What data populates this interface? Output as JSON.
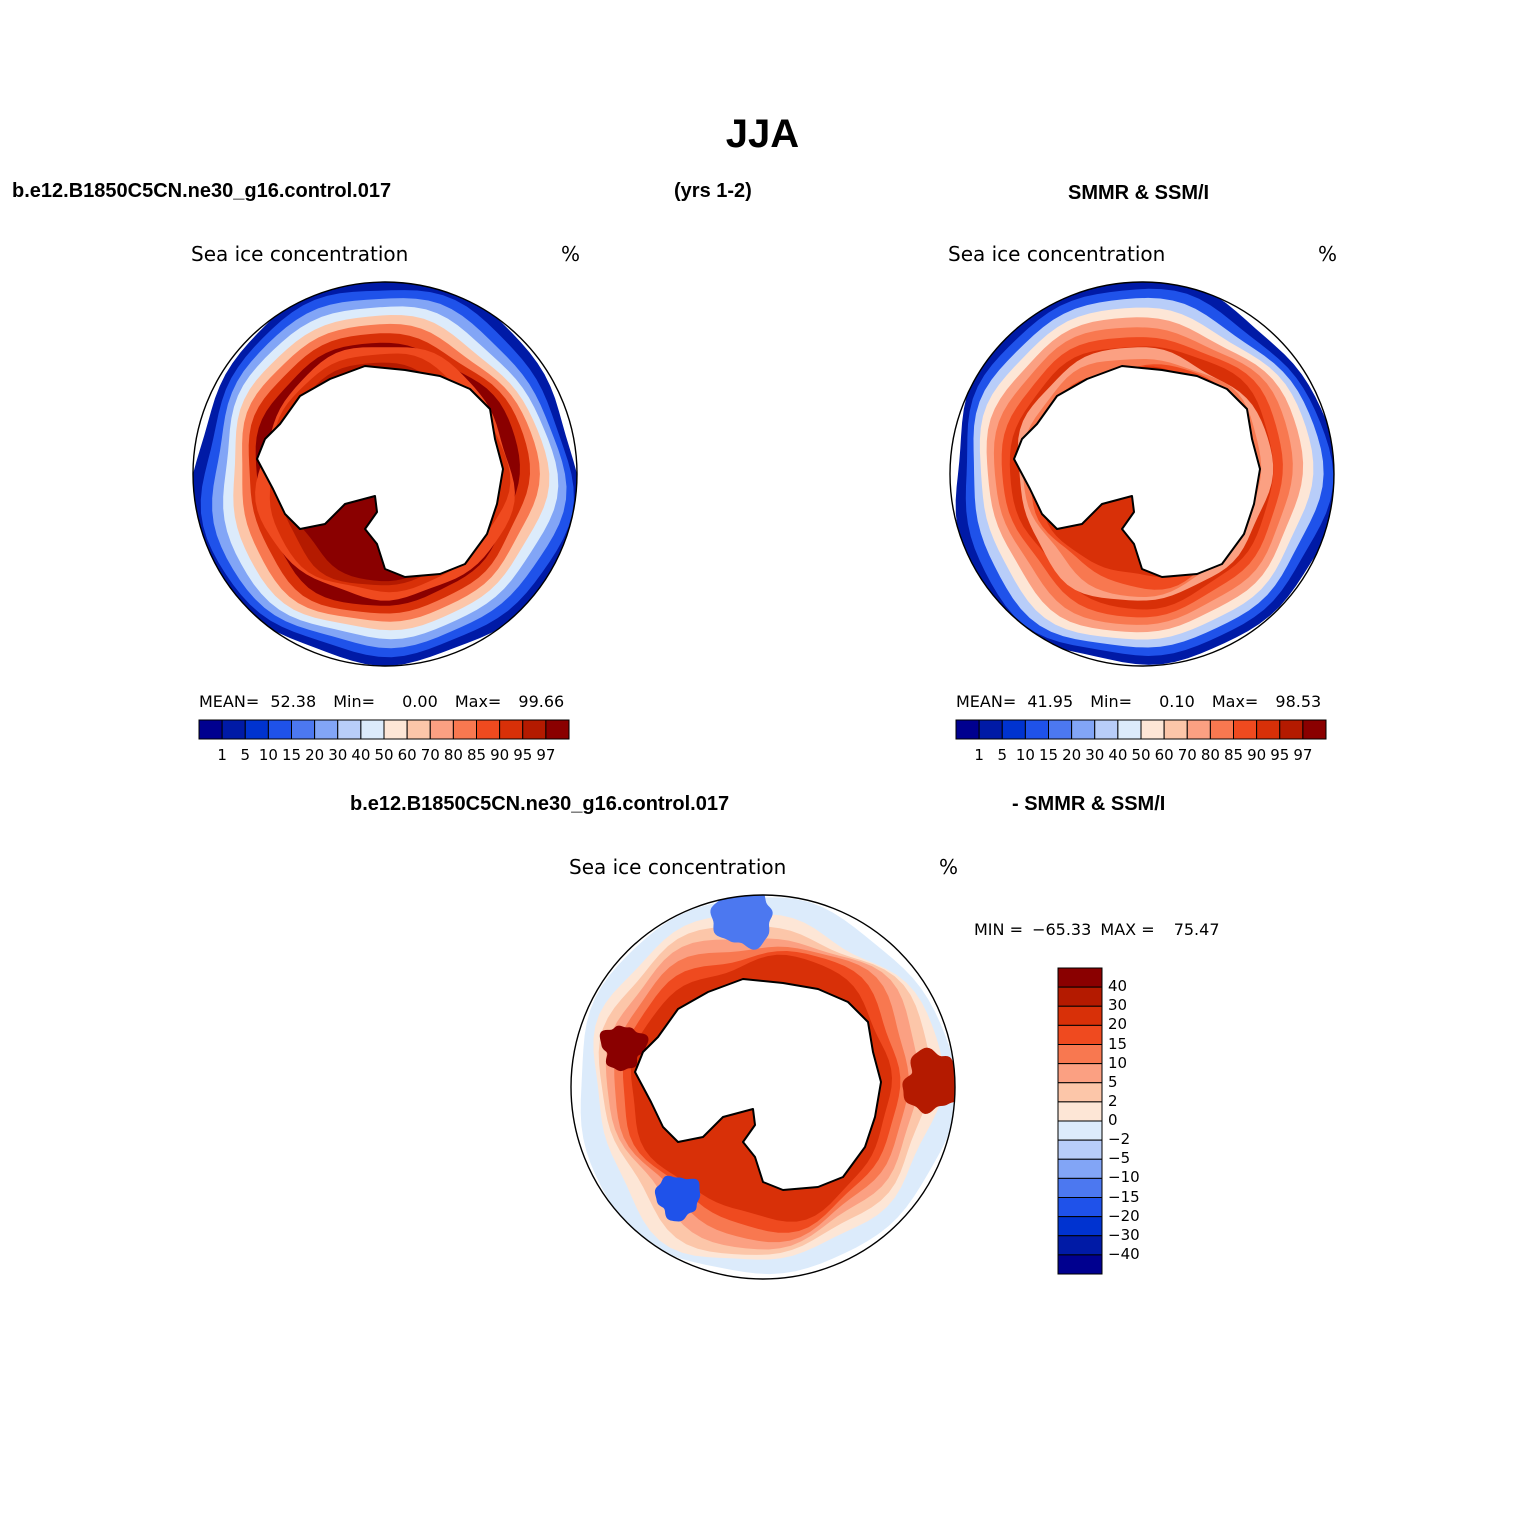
{
  "title": "JJA",
  "header": {
    "left": "b.e12.B1850C5CN.ne30_g16.control.017",
    "center": "(yrs 1-2)",
    "right": "SMMR & SSM/I",
    "diff_left": "b.e12.B1850C5CN.ne30_g16.control.017",
    "diff_right": "- SMMR & SSM/I"
  },
  "panels": {
    "model": {
      "var_label": "Sea ice concentration",
      "unit": "%",
      "mean_label": "MEAN=",
      "mean": "52.38",
      "min_label": "Min=",
      "min": "0.00",
      "max_label": "Max=",
      "max": "99.66"
    },
    "obs": {
      "var_label": "Sea ice concentration",
      "unit": "%",
      "mean_label": "MEAN=",
      "mean": "41.95",
      "min_label": "Min=",
      "min": "0.10",
      "max_label": "Max=",
      "max": "98.53"
    },
    "diff": {
      "var_label": "Sea ice concentration",
      "unit": "%",
      "min_label": "MIN =",
      "min": "−65.33",
      "max_label": "MAX =",
      "max": "75.47"
    }
  },
  "chart_data": [
    {
      "type": "heatmap",
      "title": "Sea ice concentration",
      "subtitle": "b.e12.B1850C5CN.ne30_g16.control.017 (yrs 1-2), JJA",
      "projection": "south polar stereographic",
      "units": "%",
      "stats": {
        "mean": 52.38,
        "min": 0.0,
        "max": 99.66
      },
      "levels": [
        1,
        5,
        10,
        15,
        20,
        30,
        40,
        50,
        60,
        70,
        80,
        85,
        90,
        95,
        97
      ],
      "level_labels": [
        "1",
        "5",
        "10",
        "15",
        "20",
        "30",
        "40",
        "50",
        "60",
        "70",
        "80",
        "85",
        "90",
        "95",
        "97"
      ]
    },
    {
      "type": "heatmap",
      "title": "Sea ice concentration",
      "subtitle": "SMMR & SSM/I, JJA",
      "projection": "south polar stereographic",
      "units": "%",
      "stats": {
        "mean": 41.95,
        "min": 0.1,
        "max": 98.53
      },
      "levels": [
        1,
        5,
        10,
        15,
        20,
        30,
        40,
        50,
        60,
        70,
        80,
        85,
        90,
        95,
        97
      ],
      "level_labels": [
        "1",
        "5",
        "10",
        "15",
        "20",
        "30",
        "40",
        "50",
        "60",
        "70",
        "80",
        "85",
        "90",
        "95",
        "97"
      ]
    },
    {
      "type": "heatmap",
      "title": "Sea ice concentration",
      "subtitle": "b.e12.B1850C5CN.ne30_g16.control.017 - SMMR & SSM/I",
      "projection": "south polar stereographic",
      "units": "%",
      "stats": {
        "min": -65.33,
        "max": 75.47
      },
      "levels": [
        -40,
        -30,
        -20,
        -15,
        -10,
        -5,
        -2,
        0,
        2,
        5,
        10,
        15,
        20,
        30,
        40
      ],
      "level_labels": [
        "−40",
        "−30",
        "−20",
        "−15",
        "−10",
        "−5",
        "−2",
        "0",
        "2",
        "5",
        "10",
        "15",
        "20",
        "30",
        "40"
      ]
    }
  ],
  "colors": {
    "scale16": [
      "#00008f",
      "#001aa6",
      "#0033d0",
      "#1f52ea",
      "#4c78f0",
      "#82a5f6",
      "#b8cdf9",
      "#dcebfb",
      "#fde6d6",
      "#fcc6a9",
      "#fba082",
      "#f87850",
      "#ef4a1f",
      "#d83008",
      "#b41a00",
      "#8a0000"
    ],
    "ice_mask": "#ffffff",
    "coast": "#000000"
  }
}
